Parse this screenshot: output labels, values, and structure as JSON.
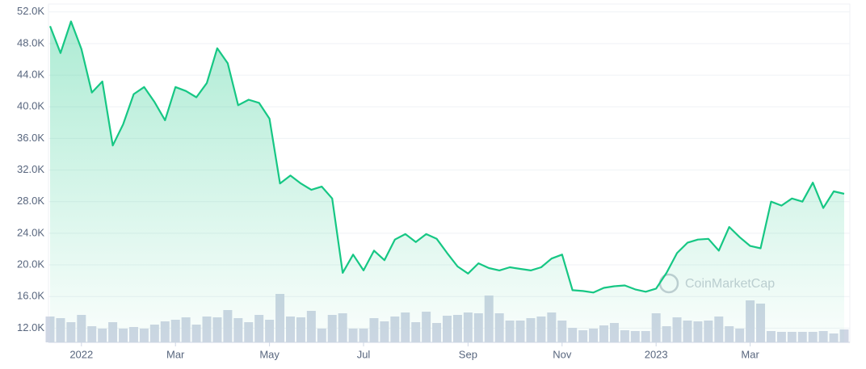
{
  "chart_data": {
    "type": "area",
    "watermark": "CoinMarketCap",
    "categories": [
      null,
      null,
      null,
      "2022",
      null,
      null,
      null,
      null,
      null,
      null,
      null,
      null,
      "Mar",
      null,
      null,
      null,
      null,
      null,
      null,
      null,
      null,
      "May",
      null,
      null,
      null,
      null,
      null,
      null,
      null,
      null,
      "Jul",
      null,
      null,
      null,
      null,
      null,
      null,
      null,
      null,
      null,
      "Sep",
      null,
      null,
      null,
      null,
      null,
      null,
      null,
      null,
      "Nov",
      null,
      null,
      null,
      null,
      null,
      null,
      null,
      null,
      "2023",
      null,
      null,
      null,
      null,
      null,
      null,
      null,
      null,
      "Mar",
      null,
      null,
      null,
      null,
      null,
      null,
      null,
      null,
      null
    ],
    "series": [
      {
        "color": "#16c784",
        "values": [
          50200,
          46800,
          50800,
          47300,
          41800,
          43200,
          35100,
          37800,
          41600,
          42500,
          40600,
          38300,
          42500,
          42000,
          41200,
          43000,
          47400,
          45500,
          40200,
          40900,
          40500,
          38500,
          30300,
          31300,
          30300,
          29500,
          29900,
          28400,
          19000,
          21300,
          19300,
          21800,
          20600,
          23200,
          23900,
          22900,
          23900,
          23300,
          21500,
          19800,
          18900,
          20200,
          19600,
          19300,
          19700,
          19500,
          19300,
          19700,
          20800,
          21300,
          16800,
          16700,
          16500,
          17100,
          17300,
          17400,
          16900,
          16600,
          17000,
          19000,
          21500,
          22800,
          23200,
          23300,
          21800,
          24800,
          23500,
          22400,
          22100,
          28000,
          27500,
          28400,
          28000,
          30400,
          27200,
          29300,
          29000
        ]
      }
    ],
    "volume": {
      "color": "#cfd6e4",
      "values": [
        32,
        30,
        25,
        34,
        20,
        17,
        25,
        17,
        19,
        17,
        22,
        26,
        28,
        31,
        22,
        32,
        31,
        40,
        30,
        25,
        34,
        28,
        60,
        32,
        31,
        39,
        17,
        34,
        36,
        17,
        17,
        30,
        26,
        32,
        37,
        25,
        38,
        24,
        33,
        34,
        37,
        36,
        58,
        36,
        27,
        27,
        30,
        32,
        37,
        27,
        18,
        15,
        17,
        21,
        24,
        15,
        14,
        14,
        36,
        20,
        31,
        27,
        26,
        27,
        32,
        20,
        17,
        52,
        48,
        14,
        13,
        13,
        13,
        13,
        14,
        11,
        16
      ]
    },
    "ylim": [
      10200,
      53000
    ],
    "yticks": [
      {
        "value": 12000,
        "label": "12.0K"
      },
      {
        "value": 16000,
        "label": "16.0K"
      },
      {
        "value": 20000,
        "label": "20.0K"
      },
      {
        "value": 24000,
        "label": "24.0K"
      },
      {
        "value": 28000,
        "label": "28.0K"
      },
      {
        "value": 32000,
        "label": "32.0K"
      },
      {
        "value": 36000,
        "label": "36.0K"
      },
      {
        "value": 40000,
        "label": "40.0K"
      },
      {
        "value": 44000,
        "label": "44.0K"
      },
      {
        "value": 48000,
        "label": "48.0K"
      },
      {
        "value": 52000,
        "label": "52.0K"
      }
    ],
    "grid": true
  }
}
